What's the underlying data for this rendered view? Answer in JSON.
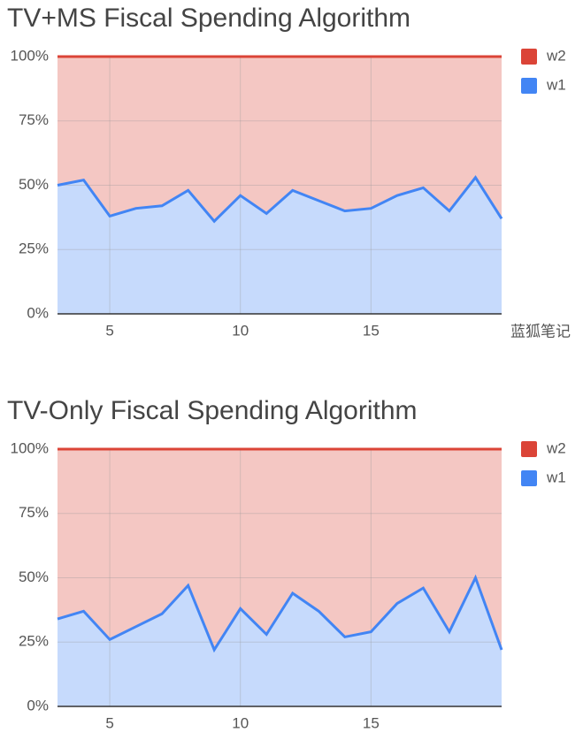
{
  "chart_data": [
    {
      "type": "stacked-area",
      "title": "TV+MS Fiscal Spending Algorithm",
      "x": [
        3,
        4,
        5,
        6,
        7,
        8,
        9,
        10,
        11,
        12,
        13,
        14,
        15,
        16,
        17,
        18,
        19,
        20
      ],
      "series": [
        {
          "name": "w1",
          "color": "#4285f4",
          "values": [
            50,
            52,
            38,
            41,
            42,
            48,
            36,
            46,
            39,
            48,
            44,
            40,
            41,
            46,
            49,
            40,
            53,
            37
          ]
        },
        {
          "name": "w2",
          "color": "#db4437",
          "values": [
            50,
            48,
            62,
            59,
            58,
            52,
            64,
            54,
            61,
            52,
            56,
            60,
            59,
            54,
            51,
            60,
            47,
            63
          ]
        }
      ],
      "xlim": [
        3,
        20
      ],
      "xticks": [
        5,
        10,
        15
      ],
      "ylim": [
        0,
        100
      ],
      "yticks": [
        {
          "value": 0,
          "label": "0%"
        },
        {
          "value": 25,
          "label": "25%"
        },
        {
          "value": 50,
          "label": "50%"
        },
        {
          "value": 75,
          "label": "75%"
        },
        {
          "value": 100,
          "label": "100%"
        }
      ],
      "grid": true,
      "legend": "right",
      "watermark": "蓝狐笔记"
    },
    {
      "type": "stacked-area",
      "title": "TV-Only Fiscal Spending Algorithm",
      "x": [
        3,
        4,
        5,
        6,
        7,
        8,
        9,
        10,
        11,
        12,
        13,
        14,
        15,
        16,
        17,
        18,
        19,
        20
      ],
      "series": [
        {
          "name": "w1",
          "color": "#4285f4",
          "values": [
            34,
            37,
            26,
            31,
            36,
            47,
            22,
            38,
            28,
            44,
            37,
            27,
            29,
            40,
            46,
            29,
            50,
            22
          ]
        },
        {
          "name": "w2",
          "color": "#db4437",
          "values": [
            66,
            63,
            74,
            69,
            64,
            53,
            78,
            62,
            72,
            56,
            63,
            73,
            71,
            60,
            54,
            71,
            50,
            78
          ]
        }
      ],
      "xlim": [
        3,
        20
      ],
      "xticks": [
        5,
        10,
        15
      ],
      "ylim": [
        0,
        100
      ],
      "yticks": [
        {
          "value": 0,
          "label": "0%"
        },
        {
          "value": 25,
          "label": "25%"
        },
        {
          "value": 50,
          "label": "50%"
        },
        {
          "value": 75,
          "label": "75%"
        },
        {
          "value": 100,
          "label": "100%"
        }
      ],
      "grid": true,
      "legend": "right"
    }
  ]
}
